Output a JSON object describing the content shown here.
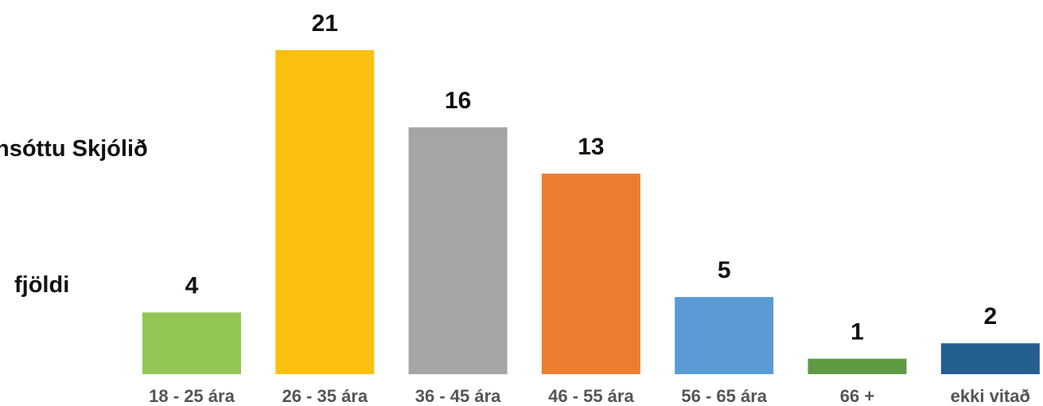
{
  "chart_data": {
    "type": "bar",
    "title": "nsóttu Skjólið",
    "ylabel": "fjöldi",
    "categories": [
      "18 - 25 ára",
      "26 - 35 ára",
      "36 - 45 ára",
      "46 - 55 ára",
      "56 - 65 ára",
      "66 +",
      "ekki vitað"
    ],
    "values": [
      4,
      21,
      16,
      13,
      5,
      1,
      2
    ],
    "colors": [
      "#92c655",
      "#fbbf10",
      "#a5a5a5",
      "#ed7d31",
      "#5b9bd5",
      "#5f9b45",
      "#255e91"
    ],
    "ylim": [
      0,
      21
    ],
    "grid": false,
    "legend": "none"
  }
}
